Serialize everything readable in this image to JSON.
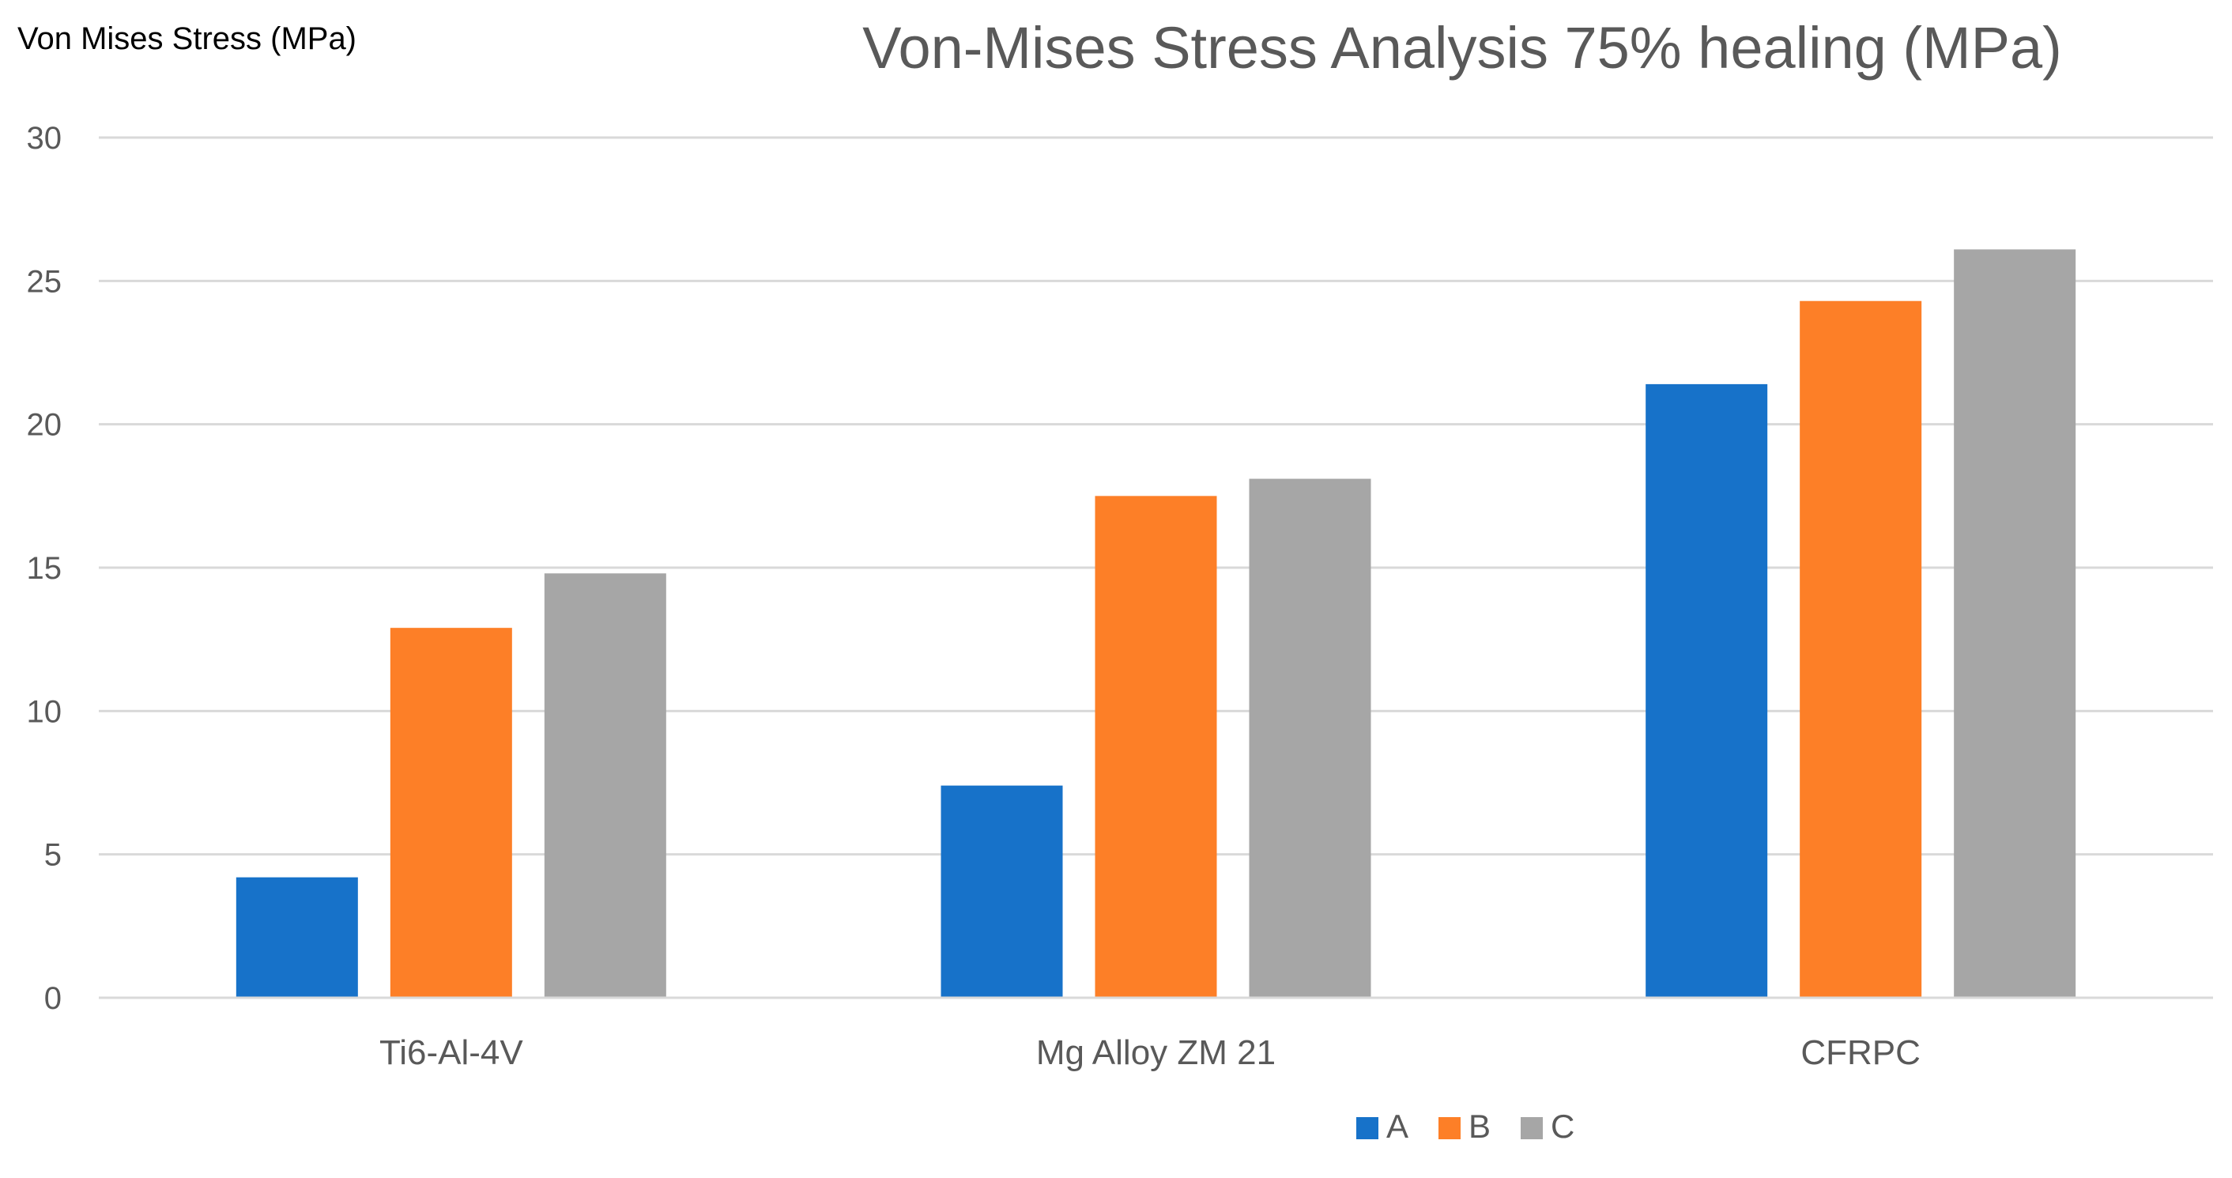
{
  "chart_data": {
    "type": "bar",
    "title": "Von-Mises Stress Analysis 75% healing (MPa)",
    "ylabel": "Von Mises Stress (MPa)",
    "xlabel": "",
    "categories": [
      "Ti6-Al-4V",
      "Mg Alloy ZM 21",
      "CFRPC"
    ],
    "series": [
      {
        "name": "A",
        "color": "#1772C9",
        "values": [
          4.2,
          7.4,
          21.4
        ]
      },
      {
        "name": "B",
        "color": "#FD7F27",
        "values": [
          12.9,
          17.5,
          24.3
        ]
      },
      {
        "name": "C",
        "color": "#A6A6A6",
        "values": [
          14.8,
          18.1,
          26.1
        ]
      }
    ],
    "ylim": [
      0,
      30
    ],
    "yticks": [
      "0",
      "5",
      "10",
      "15",
      "20",
      "25",
      "30"
    ],
    "grid": true,
    "legend_position": "bottom-center"
  }
}
